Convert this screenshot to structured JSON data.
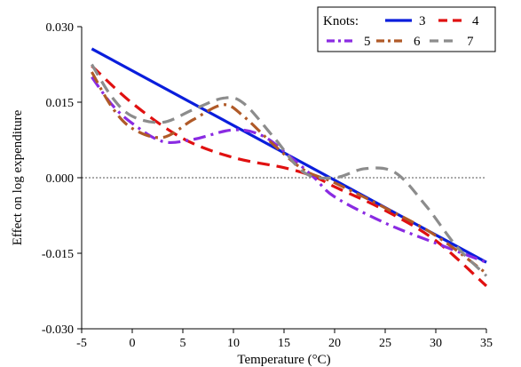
{
  "chart_data": {
    "type": "line",
    "title": "",
    "xlabel": "Temperature (°C)",
    "ylabel": "Effect on log expenditure",
    "xlim": [
      -5,
      35
    ],
    "ylim": [
      -0.03,
      0.03
    ],
    "xticks": [
      "-5",
      "0",
      "5",
      "10",
      "15",
      "20",
      "25",
      "30",
      "35"
    ],
    "yticks": [
      "0.030",
      "0.015",
      "0.000",
      "-0.015",
      "-0.030"
    ],
    "reference_line": {
      "y": 0.0,
      "style": "dotted"
    },
    "legend": {
      "title": "Knots:",
      "position": "top-right"
    },
    "series": [
      {
        "name": "3",
        "color": "#0a1edc",
        "dash": "solid",
        "points": [
          [
            -4,
            0.0256
          ],
          [
            35,
            -0.0168
          ]
        ]
      },
      {
        "name": "4",
        "color": "#e01010",
        "dash": "dashed",
        "points": [
          [
            -4,
            0.0222
          ],
          [
            0,
            0.0148
          ],
          [
            5,
            0.0078
          ],
          [
            10,
            0.004
          ],
          [
            15,
            0.002
          ],
          [
            18,
            0.0002
          ],
          [
            20,
            -0.0018
          ],
          [
            25,
            -0.0065
          ],
          [
            30,
            -0.0125
          ],
          [
            35,
            -0.0215
          ]
        ]
      },
      {
        "name": "5",
        "color": "#8a2be2",
        "dash": "dashdot",
        "points": [
          [
            -4,
            0.02
          ],
          [
            -2,
            0.0145
          ],
          [
            0,
            0.0108
          ],
          [
            3,
            0.0072
          ],
          [
            6,
            0.0076
          ],
          [
            10,
            0.0095
          ],
          [
            13,
            0.0082
          ],
          [
            16,
            0.0035
          ],
          [
            18,
            0.0
          ],
          [
            20,
            -0.0038
          ],
          [
            25,
            -0.009
          ],
          [
            30,
            -0.013
          ],
          [
            35,
            -0.0168
          ]
        ]
      },
      {
        "name": "6",
        "color": "#b05a28",
        "dash": "dashdot",
        "points": [
          [
            -4,
            0.021
          ],
          [
            -2,
            0.014
          ],
          [
            0,
            0.0098
          ],
          [
            3,
            0.008
          ],
          [
            6,
            0.0115
          ],
          [
            9,
            0.0145
          ],
          [
            11,
            0.0122
          ],
          [
            14,
            0.0065
          ],
          [
            17,
            0.0015
          ],
          [
            20,
            -0.001
          ],
          [
            25,
            -0.006
          ],
          [
            30,
            -0.0115
          ],
          [
            35,
            -0.019
          ]
        ]
      },
      {
        "name": "7",
        "color": "#8c8c8c",
        "dash": "dashed",
        "points": [
          [
            -4,
            0.0225
          ],
          [
            -2,
            0.016
          ],
          [
            0,
            0.0122
          ],
          [
            3,
            0.011
          ],
          [
            6,
            0.0135
          ],
          [
            9,
            0.0158
          ],
          [
            11,
            0.0148
          ],
          [
            14,
            0.008
          ],
          [
            17,
            0.001
          ],
          [
            20,
            0.0
          ],
          [
            23,
            0.0018
          ],
          [
            26,
            0.001
          ],
          [
            29,
            -0.0055
          ],
          [
            32,
            -0.0135
          ],
          [
            35,
            -0.0195
          ]
        ]
      }
    ]
  }
}
